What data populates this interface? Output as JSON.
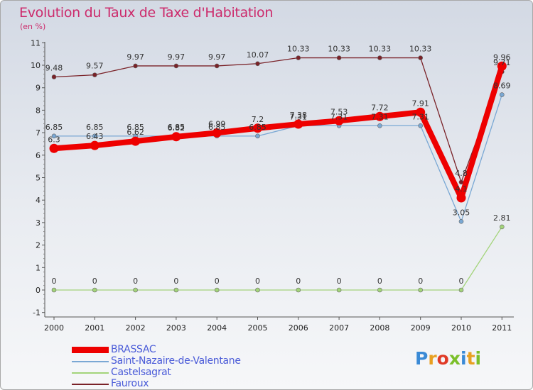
{
  "header": {
    "title": "Evolution du Taux de Taxe d'Habitation",
    "subtitle": "(en %)"
  },
  "logo": {
    "text": "Proxiti",
    "colors": [
      "#3a8ad6",
      "#e8a021",
      "#e03a26",
      "#7bbf2a",
      "#3a8ad6",
      "#e8a021",
      "#7bbf2a"
    ]
  },
  "chart_data": {
    "type": "line",
    "x": [
      "2000",
      "2001",
      "2002",
      "2003",
      "2004",
      "2005",
      "2006",
      "2007",
      "2008",
      "2009",
      "2010",
      "2011"
    ],
    "ylim": [
      -1,
      11
    ],
    "yticks": [
      "-1",
      "0",
      "1",
      "2",
      "3",
      "4",
      "5",
      "6",
      "7",
      "8",
      "9",
      "10",
      "11"
    ],
    "grid": false,
    "legend_position": "bottom-left",
    "series": [
      {
        "name": "Fauroux",
        "color": "#7a2228",
        "values": [
          9.48,
          9.57,
          9.97,
          9.97,
          9.97,
          10.07,
          10.33,
          10.33,
          10.33,
          10.33,
          4.8,
          9.71
        ],
        "labels": [
          "9.48",
          "9.57",
          "9.97",
          "9.97",
          "9.97",
          "10.07",
          "10.33",
          "10.33",
          "10.33",
          "10.33",
          "4.8",
          "9.71"
        ]
      },
      {
        "name": "Saint-Nazaire-de-Valentane",
        "color": "#7aa8d4",
        "values": [
          6.85,
          6.85,
          6.85,
          6.85,
          6.85,
          6.85,
          7.31,
          7.31,
          7.31,
          7.31,
          3.05,
          8.69
        ],
        "labels": [
          "6.85",
          "6.85",
          "6.85",
          "6.85",
          "6.85",
          "6.85",
          "7.31",
          "7.31",
          "7.31",
          "7.31",
          "3.05",
          "8.69"
        ]
      },
      {
        "name": "Castelsagrat",
        "color": "#a3d47a",
        "values": [
          0,
          0,
          0,
          0,
          0,
          0,
          0,
          0,
          0,
          0,
          0,
          2.81
        ],
        "labels": [
          "0",
          "0",
          "0",
          "0",
          "0",
          "0",
          "0",
          "0",
          "0",
          "0",
          "0",
          "2.81"
        ]
      },
      {
        "name": "BRASSAC",
        "color": "#ee0000",
        "values": [
          6.3,
          6.43,
          6.62,
          6.82,
          6.99,
          7.2,
          7.38,
          7.53,
          7.72,
          7.91,
          4.1,
          9.96
        ],
        "labels": [
          "6.3",
          "6.43",
          "6.62",
          "6.82",
          "6.99",
          "7.2",
          "7.38",
          "7.53",
          "7.72",
          "7.91",
          "4.1",
          "9.96"
        ]
      }
    ],
    "legend": [
      "BRASSAC",
      "Saint-Nazaire-de-Valentane",
      "Castelsagrat",
      "Fauroux"
    ]
  }
}
